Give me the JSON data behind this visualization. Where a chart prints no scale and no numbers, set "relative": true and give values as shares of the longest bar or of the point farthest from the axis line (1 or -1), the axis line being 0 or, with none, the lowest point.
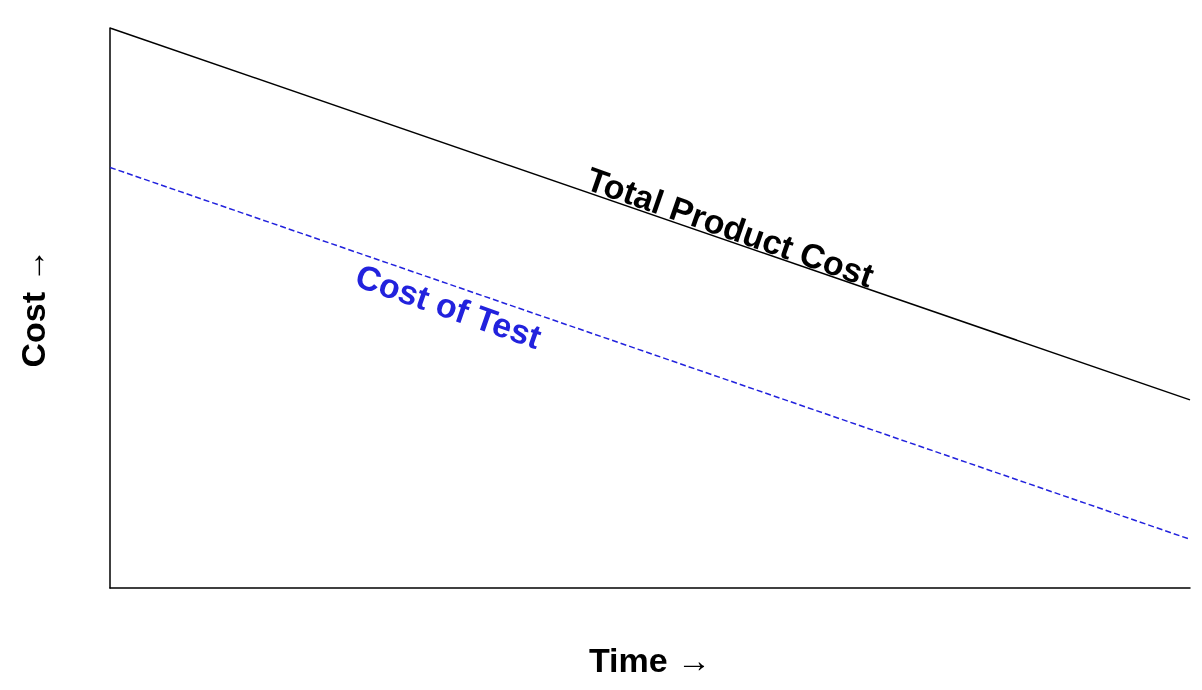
{
  "chart_data": {
    "type": "line",
    "relative": true,
    "xlabel": "Time →",
    "ylabel": "Cost →",
    "categories": [
      null,
      null
    ],
    "grid": false,
    "legend": false,
    "marker": "none",
    "series": [
      {
        "name": "Total Product Cost",
        "color": "#000000",
        "values": [
          1,
          0.336
        ],
        "line_style": "solid"
      },
      {
        "name": "Cost of Test",
        "color": "#2222dd",
        "values": [
          0.751,
          0.087
        ],
        "line_style": "dashed"
      }
    ]
  }
}
